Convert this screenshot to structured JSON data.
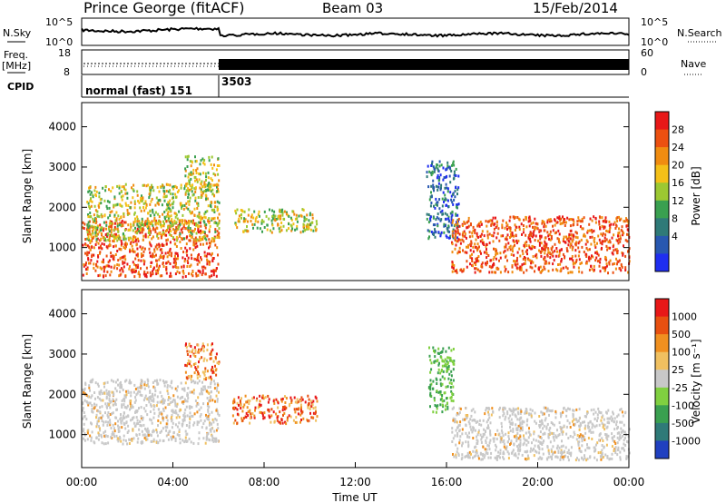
{
  "header": {
    "station": "Prince George (fitACF)",
    "beam": "Beam 03",
    "date": "15/Feb/2014"
  },
  "strips": {
    "nsky_label": "N.Sky",
    "nsky_ticks": [
      "10^5",
      "10^0"
    ],
    "nsearch_label": "N.Search",
    "nsearch_ticks": [
      "10^5",
      "10^0"
    ],
    "freq_label_1": "Freq.",
    "freq_label_2": "[MHz]",
    "freq_ticks": [
      "18",
      "8"
    ],
    "nave_label": "Nave",
    "nave_ticks": [
      "60",
      "0"
    ],
    "cpid_label": "CPID",
    "cpid_segments": [
      {
        "text": "normal (fast) 151",
        "start_hour": 0.0
      },
      {
        "text": "3503",
        "start_hour": 6.0
      }
    ]
  },
  "chart_data": [
    {
      "type": "heatmap",
      "name": "power-panel",
      "ylabel": "Slant Range [km]",
      "xlabel": "",
      "xlim": [
        0,
        24
      ],
      "ylim": [
        180,
        4600
      ],
      "yticks": [
        1000,
        2000,
        3000,
        4000
      ],
      "colorbar": {
        "label": "Power [dB]",
        "ticks": [
          4,
          8,
          12,
          16,
          20,
          24,
          28
        ],
        "range": [
          0,
          32
        ],
        "colors": [
          "#1f2ef0",
          "#2858b0",
          "#2f7a78",
          "#3aa050",
          "#9cc832",
          "#f4c018",
          "#f08c10",
          "#ec5010",
          "#e81818"
        ]
      },
      "regions": [
        {
          "t0": 0.0,
          "t1": 6.0,
          "r0": 300,
          "r1": 1700,
          "level": "high"
        },
        {
          "t0": 0.2,
          "t1": 6.0,
          "r0": 1200,
          "r1": 2600,
          "level": "mid"
        },
        {
          "t0": 4.5,
          "t1": 6.0,
          "r0": 2400,
          "r1": 3300,
          "level": "mid"
        },
        {
          "t0": 6.6,
          "t1": 10.3,
          "r0": 1400,
          "r1": 2000,
          "level": "mid"
        },
        {
          "t0": 15.1,
          "t1": 16.5,
          "r0": 1200,
          "r1": 3200,
          "level": "low"
        },
        {
          "t0": 16.2,
          "t1": 24.0,
          "r0": 400,
          "r1": 1800,
          "level": "high"
        }
      ]
    },
    {
      "type": "heatmap",
      "name": "velocity-panel",
      "ylabel": "Slant Range [km]",
      "xlabel": "Time UT",
      "xlim": [
        0,
        24
      ],
      "ylim": [
        180,
        4600
      ],
      "xticks": [
        "00:00",
        "04:00",
        "08:00",
        "12:00",
        "16:00",
        "20:00",
        "00:00"
      ],
      "xtick_hours": [
        0,
        4,
        8,
        12,
        16,
        20,
        24
      ],
      "yticks": [
        1000,
        2000,
        3000,
        4000
      ],
      "colorbar": {
        "label": "Velocity [m s⁻¹]",
        "ticks": [
          1000,
          500,
          100,
          25,
          -25,
          -100,
          -500,
          -1000
        ],
        "colors": [
          "#2040c0",
          "#2f7a78",
          "#3aa050",
          "#80d040",
          "#c8c8c8",
          "#f0c060",
          "#f09020",
          "#e85010",
          "#e81818"
        ]
      },
      "regions": [
        {
          "t0": 0.0,
          "t1": 6.0,
          "r0": 800,
          "r1": 2400,
          "level": "ground"
        },
        {
          "t0": 4.5,
          "t1": 6.0,
          "r0": 2400,
          "r1": 3300,
          "level": "away"
        },
        {
          "t0": 6.6,
          "t1": 10.3,
          "r0": 1300,
          "r1": 2000,
          "level": "away"
        },
        {
          "t0": 15.2,
          "t1": 16.3,
          "r0": 1500,
          "r1": 3200,
          "level": "toward"
        },
        {
          "t0": 16.2,
          "t1": 24.0,
          "r0": 400,
          "r1": 1700,
          "level": "ground"
        }
      ]
    }
  ]
}
